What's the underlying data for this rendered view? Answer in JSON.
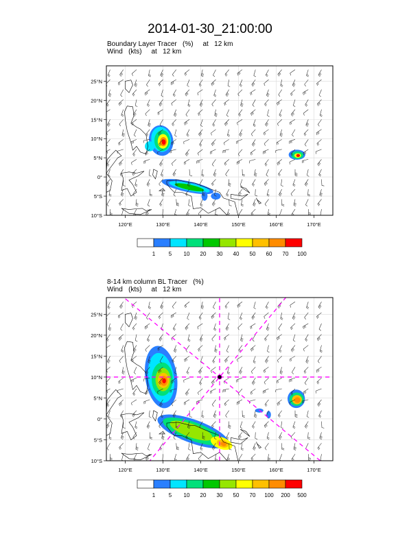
{
  "page": {
    "title": "2014-01-30_21:00:00"
  },
  "panels": [
    {
      "title_line1": "Boundary Layer Tracer   (%)     at   12 km",
      "title_line2": "Wind   (kts)     at   12 km",
      "lat_labels": [
        "25°N",
        "20°N",
        "15°N",
        "10°N",
        "5°N",
        "0°",
        "5°S",
        "10°S"
      ],
      "lon_labels": [
        "120°E",
        "130°E",
        "140°E",
        "150°E",
        "160°E",
        "170°E"
      ],
      "colorbar_labels": [
        "1",
        "5",
        "10",
        "20",
        "30",
        "40",
        "50",
        "60",
        "70",
        "100"
      ]
    },
    {
      "title_line1": "8-14 km column BL Tracer   (%)",
      "title_line2": "Wind   (kts)     at   12 km",
      "lat_labels": [
        "25°N",
        "20°N",
        "15°N",
        "10°N",
        "5°N",
        "0°",
        "5°S",
        "10°S"
      ],
      "lon_labels": [
        "120°E",
        "130°E",
        "140°E",
        "150°E",
        "160°E",
        "170°E"
      ],
      "colorbar_labels": [
        "1",
        "5",
        "10",
        "20",
        "30",
        "50",
        "70",
        "100",
        "200",
        "500"
      ]
    }
  ],
  "colors": {
    "colorbar": [
      "#ffffff",
      "#2a7fff",
      "#00e5ff",
      "#00e07a",
      "#00c800",
      "#96e600",
      "#ffff00",
      "#ffc000",
      "#ff8c00",
      "#ff0000"
    ],
    "guide_lines": "#ff00ff"
  },
  "map_extent": {
    "lon": [
      115,
      175
    ],
    "lat": [
      -10,
      29
    ]
  }
}
